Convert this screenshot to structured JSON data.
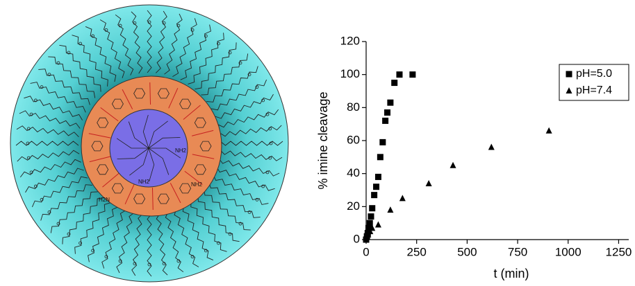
{
  "diagram": {
    "labels": [
      "NH2",
      "NH2",
      "H2N",
      "NH2"
    ]
  },
  "chart_data": {
    "type": "scatter",
    "xlabel": "t (min)",
    "ylabel": "% imine cleavage",
    "xlim": [
      0,
      1300
    ],
    "ylim": [
      0,
      120
    ],
    "xticks": [
      0,
      250,
      500,
      750,
      1000,
      1250
    ],
    "yticks": [
      0,
      20,
      40,
      60,
      80,
      100,
      120
    ],
    "legend": "upper right",
    "series": [
      {
        "name": "pH=5.0",
        "color": "#000000",
        "marker": "square",
        "x": [
          0,
          4,
          8,
          12,
          18,
          24,
          30,
          40,
          50,
          60,
          70,
          82,
          95,
          105,
          120,
          140,
          165,
          230
        ],
        "values": [
          0,
          2,
          4,
          7,
          10,
          14,
          19,
          27,
          32,
          38,
          50,
          59,
          72,
          77,
          83,
          95,
          100,
          100
        ]
      },
      {
        "name": "pH=7.4",
        "color": "#000000",
        "marker": "triangle",
        "x": [
          0,
          10,
          20,
          30,
          60,
          120,
          180,
          310,
          430,
          620,
          905
        ],
        "values": [
          0,
          3,
          5,
          7,
          9,
          18,
          25,
          34,
          45,
          56,
          66
        ]
      }
    ]
  }
}
